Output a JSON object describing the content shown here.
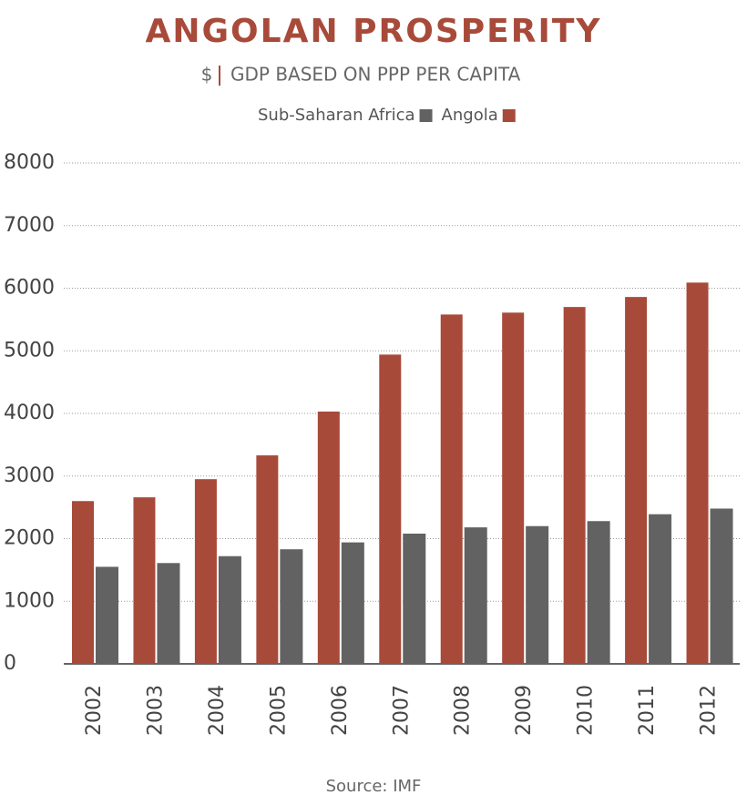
{
  "chart_data": {
    "type": "bar",
    "title": "ANGOLAN PROSPERITY",
    "unit": "$",
    "subtitle": "GDP BASED ON PPP PER CAPITA",
    "source": "Source: IMF",
    "categories": [
      "2002",
      "2003",
      "2004",
      "2005",
      "2006",
      "2007",
      "2008",
      "2009",
      "2010",
      "2011",
      "2012"
    ],
    "series": [
      {
        "name": "Sub-Saharan Africa",
        "color": "#636262",
        "values": [
          1550,
          1610,
          1720,
          1830,
          1940,
          2080,
          2180,
          2200,
          2280,
          2390,
          2480
        ]
      },
      {
        "name": "Angola",
        "color": "#a84a3a",
        "values": [
          2600,
          2660,
          2950,
          3330,
          4030,
          4940,
          5580,
          5610,
          5700,
          5860,
          6090
        ]
      }
    ],
    "ylim": [
      0,
      8000
    ],
    "yticks": [
      0,
      1000,
      2000,
      3000,
      4000,
      5000,
      6000,
      7000,
      8000
    ],
    "grid": true
  }
}
